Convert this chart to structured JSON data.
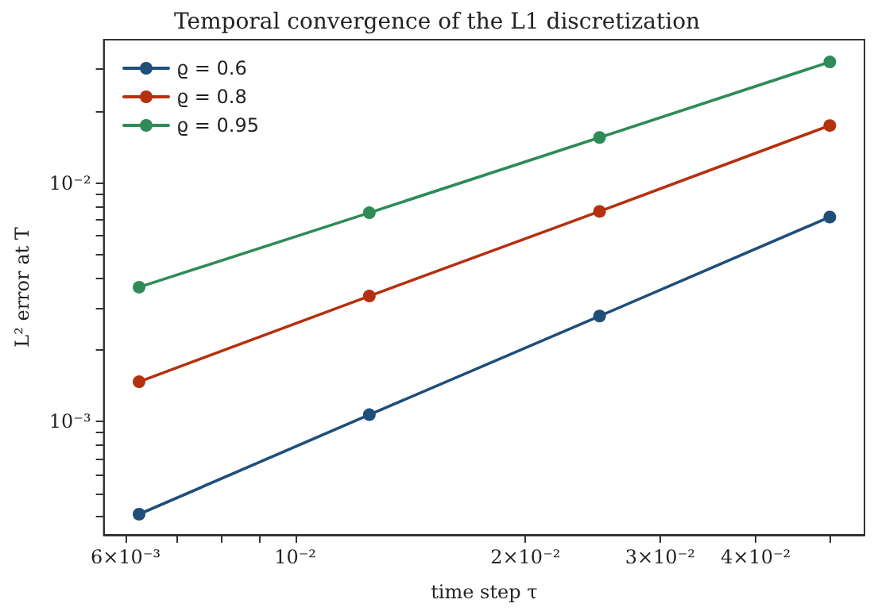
{
  "chart_data": {
    "type": "line",
    "title": "Temporal convergence of the L1 discretization",
    "xlabel": "time step τ",
    "ylabel": "L² error at T",
    "log": "xy",
    "grid": false,
    "legend": "top left",
    "marker": "circle",
    "line_style": "solid",
    "x": [
      0.00625,
      0.0125,
      0.025,
      0.05
    ],
    "xlim": [
      0.00562,
      0.0555
    ],
    "xticks": [
      {
        "value": 0.006,
        "label": "6×10⁻³"
      },
      {
        "value": 0.007,
        "label": null
      },
      {
        "value": 0.008,
        "label": null
      },
      {
        "value": 0.009,
        "label": null
      },
      {
        "value": 0.01,
        "label": "10⁻²"
      },
      {
        "value": 0.02,
        "label": "2×10⁻²"
      },
      {
        "value": 0.03,
        "label": "3×10⁻²"
      },
      {
        "value": 0.04,
        "label": "4×10⁻²"
      },
      {
        "value": 0.05,
        "label": null
      }
    ],
    "ylim": [
      0.000336,
      0.0398
    ],
    "yticks": [
      {
        "value": 0.0004,
        "label": null
      },
      {
        "value": 0.0005,
        "label": null
      },
      {
        "value": 0.0006,
        "label": null
      },
      {
        "value": 0.0007,
        "label": null
      },
      {
        "value": 0.0008,
        "label": null
      },
      {
        "value": 0.0009,
        "label": null
      },
      {
        "value": 0.001,
        "label": "10⁻³"
      },
      {
        "value": 0.002,
        "label": null
      },
      {
        "value": 0.003,
        "label": null
      },
      {
        "value": 0.004,
        "label": null
      },
      {
        "value": 0.005,
        "label": null
      },
      {
        "value": 0.006,
        "label": null
      },
      {
        "value": 0.007,
        "label": null
      },
      {
        "value": 0.008,
        "label": null
      },
      {
        "value": 0.009,
        "label": null
      },
      {
        "value": 0.01,
        "label": "10⁻²"
      },
      {
        "value": 0.02,
        "label": null
      },
      {
        "value": 0.03,
        "label": null
      }
    ],
    "series": [
      {
        "name": "ϱ = 0.6",
        "color": "#1f4e79",
        "values": [
          0.00041,
          0.00107,
          0.00277,
          0.0072
        ]
      },
      {
        "name": "ϱ = 0.8",
        "color": "#b5300f",
        "values": [
          0.00147,
          0.00336,
          0.0076,
          0.0174
        ]
      },
      {
        "name": "ϱ = 0.95",
        "color": "#2e8b57",
        "values": [
          0.00366,
          0.0075,
          0.0155,
          0.0321
        ]
      }
    ]
  }
}
